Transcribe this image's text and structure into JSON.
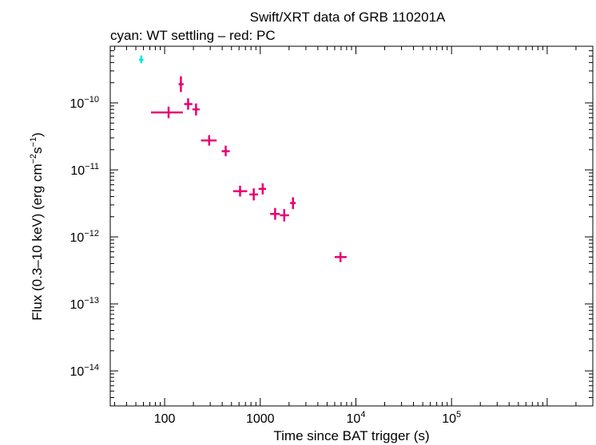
{
  "chart_data": {
    "type": "scatter",
    "title": "Swift/XRT data of GRB 110201A",
    "subtitle": "cyan: WT settling – red: PC",
    "xlabel": "Time since BAT trigger (s)",
    "ylabel_main": "Flux (0.3–10 keV) (erg cm",
    "ylabel_exp1": "−2",
    "ylabel_mid": "s",
    "ylabel_exp2": "−1",
    "ylabel_end": ")",
    "x_scale": "log",
    "y_scale": "log",
    "xlim": [
      27,
      3000000
    ],
    "ylim": [
      3e-15,
      7e-10
    ],
    "x_ticks": [
      {
        "value": 100,
        "base": "100",
        "exp": ""
      },
      {
        "value": 1000,
        "base": "1000",
        "exp": ""
      },
      {
        "value": 10000,
        "base": "10",
        "exp": "4"
      },
      {
        "value": 100000,
        "base": "10",
        "exp": "5"
      }
    ],
    "y_ticks": [
      {
        "value": 1e-10,
        "base": "10",
        "exp": "−10"
      },
      {
        "value": 1e-11,
        "base": "10",
        "exp": "−11"
      },
      {
        "value": 1e-12,
        "base": "10",
        "exp": "−12"
      },
      {
        "value": 1e-13,
        "base": "10",
        "exp": "−13"
      },
      {
        "value": 1e-14,
        "base": "10",
        "exp": "−14"
      }
    ],
    "series": [
      {
        "color": "#00e5e5",
        "points": [
          {
            "x": 57,
            "xlo": 54,
            "xhi": 60,
            "y": 4.4e-10,
            "ylo": 3.9e-10,
            "yhi": 5.1e-10
          }
        ]
      },
      {
        "color": "#e8006e",
        "points": [
          {
            "x": 110,
            "xlo": 72,
            "xhi": 155,
            "y": 7.2e-11,
            "ylo": 5.9e-11,
            "yhi": 8.8e-11
          },
          {
            "x": 148,
            "xlo": 140,
            "xhi": 158,
            "y": 1.9e-10,
            "ylo": 1.45e-10,
            "yhi": 2.5e-10
          },
          {
            "x": 176,
            "xlo": 160,
            "xhi": 195,
            "y": 9.6e-11,
            "ylo": 7.9e-11,
            "yhi": 1.17e-10
          },
          {
            "x": 213,
            "xlo": 195,
            "xhi": 232,
            "y": 8e-11,
            "ylo": 6.5e-11,
            "yhi": 9.8e-11
          },
          {
            "x": 292,
            "xlo": 240,
            "xhi": 350,
            "y": 2.75e-11,
            "ylo": 2.3e-11,
            "yhi": 3.3e-11
          },
          {
            "x": 435,
            "xlo": 395,
            "xhi": 480,
            "y": 1.9e-11,
            "ylo": 1.6e-11,
            "yhi": 2.3e-11
          },
          {
            "x": 615,
            "xlo": 520,
            "xhi": 730,
            "y": 4.8e-12,
            "ylo": 4e-12,
            "yhi": 5.8e-12
          },
          {
            "x": 855,
            "xlo": 770,
            "xhi": 950,
            "y": 4.3e-12,
            "ylo": 3.5e-12,
            "yhi": 5.3e-12
          },
          {
            "x": 1060,
            "xlo": 960,
            "xhi": 1150,
            "y": 5.2e-12,
            "ylo": 4.3e-12,
            "yhi": 6.3e-12
          },
          {
            "x": 1430,
            "xlo": 1270,
            "xhi": 1600,
            "y": 2.2e-12,
            "ylo": 1.8e-12,
            "yhi": 2.7e-12
          },
          {
            "x": 1780,
            "xlo": 1600,
            "xhi": 2000,
            "y": 2.1e-12,
            "ylo": 1.7e-12,
            "yhi": 2.6e-12
          },
          {
            "x": 2200,
            "xlo": 2050,
            "xhi": 2350,
            "y": 3.2e-12,
            "ylo": 2.6e-12,
            "yhi": 3.9e-12
          },
          {
            "x": 6900,
            "xlo": 6000,
            "xhi": 8000,
            "y": 5e-13,
            "ylo": 4.2e-13,
            "yhi": 5.9e-13
          }
        ]
      }
    ]
  }
}
